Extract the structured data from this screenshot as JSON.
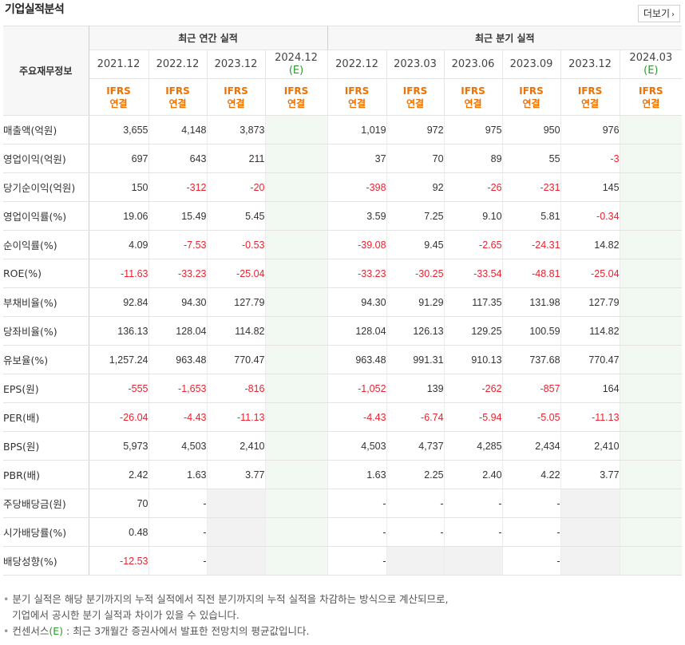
{
  "header": {
    "title": "기업실적분석",
    "more_label": "더보기",
    "more_icon": "chevron-right"
  },
  "table": {
    "corner_label": "주요재무정보",
    "annual_group": "최근 연간 실적",
    "quarter_group": "최근 분기 실적",
    "annual_periods": [
      "2021.12",
      "2022.12",
      "2023.12",
      "2024.12"
    ],
    "quarter_periods": [
      "2022.12",
      "2023.03",
      "2023.06",
      "2023.09",
      "2023.12",
      "2024.03"
    ],
    "estimate_mark": "(E)",
    "ifrs": "IFRS",
    "consolidated": "연결",
    "rows": [
      {
        "label": "매출액(억원)",
        "values": [
          "3,655",
          "4,148",
          "3,873",
          "",
          "1,019",
          "972",
          "975",
          "950",
          "976",
          ""
        ]
      },
      {
        "label": "영업이익(억원)",
        "values": [
          "697",
          "643",
          "211",
          "",
          "37",
          "70",
          "89",
          "55",
          "-3",
          ""
        ]
      },
      {
        "label": "당기순이익(억원)",
        "values": [
          "150",
          "-312",
          "-20",
          "",
          "-398",
          "92",
          "-26",
          "-231",
          "145",
          ""
        ]
      },
      {
        "label": "영업이익률(%)",
        "values": [
          "19.06",
          "15.49",
          "5.45",
          "",
          "3.59",
          "7.25",
          "9.10",
          "5.81",
          "-0.34",
          ""
        ]
      },
      {
        "label": "순이익률(%)",
        "values": [
          "4.09",
          "-7.53",
          "-0.53",
          "",
          "-39.08",
          "9.45",
          "-2.65",
          "-24.31",
          "14.82",
          ""
        ]
      },
      {
        "label": "ROE(%)",
        "values": [
          "-11.63",
          "-33.23",
          "-25.04",
          "",
          "-33.23",
          "-30.25",
          "-33.54",
          "-48.81",
          "-25.04",
          ""
        ]
      },
      {
        "label": "부채비율(%)",
        "values": [
          "92.84",
          "94.30",
          "127.79",
          "",
          "94.30",
          "91.29",
          "117.35",
          "131.98",
          "127.79",
          ""
        ]
      },
      {
        "label": "당좌비율(%)",
        "values": [
          "136.13",
          "128.04",
          "114.82",
          "",
          "128.04",
          "126.13",
          "129.25",
          "100.59",
          "114.82",
          ""
        ]
      },
      {
        "label": "유보율(%)",
        "values": [
          "1,257.24",
          "963.48",
          "770.47",
          "",
          "963.48",
          "991.31",
          "910.13",
          "737.68",
          "770.47",
          ""
        ]
      },
      {
        "label": "EPS(원)",
        "values": [
          "-555",
          "-1,653",
          "-816",
          "",
          "-1,052",
          "139",
          "-262",
          "-857",
          "164",
          ""
        ]
      },
      {
        "label": "PER(배)",
        "values": [
          "-26.04",
          "-4.43",
          "-11.13",
          "",
          "-4.43",
          "-6.74",
          "-5.94",
          "-5.05",
          "-11.13",
          ""
        ]
      },
      {
        "label": "BPS(원)",
        "values": [
          "5,973",
          "4,503",
          "2,410",
          "",
          "4,503",
          "4,737",
          "4,285",
          "2,434",
          "2,410",
          ""
        ]
      },
      {
        "label": "PBR(배)",
        "values": [
          "2.42",
          "1.63",
          "3.77",
          "",
          "1.63",
          "2.25",
          "2.40",
          "4.22",
          "3.77",
          ""
        ]
      },
      {
        "label": "주당배당금(원)",
        "values": [
          "70",
          "-",
          "",
          "",
          "-",
          "-",
          "-",
          "-",
          "",
          ""
        ]
      },
      {
        "label": "시가배당률(%)",
        "values": [
          "0.48",
          "-",
          "",
          "",
          "-",
          "-",
          "-",
          "-",
          "",
          ""
        ]
      },
      {
        "label": "배당성향(%)",
        "values": [
          "-12.53",
          "-",
          "",
          "",
          "-",
          "",
          "",
          "-",
          "",
          ""
        ]
      }
    ]
  },
  "notes": {
    "line1": "분기 실적은 해당 분기까지의 누적 실적에서 직전 분기까지의 누적 실적을 차감하는 방식으로 계산되므로,",
    "line2": "기업에서 공시한 분기 실적과 차이가 있을 수 있습니다.",
    "line3_prefix": "컨센서스",
    "line3_mark": "(E)",
    "line3_suffix": " : 최근 3개월간 증권사에서 발표한 전망치의 평균값입니다."
  },
  "colors": {
    "negative": "#e8232f",
    "ifrs": "#f07000",
    "estimate_bg": "#f2f9f2",
    "estimate_text": "#2c9a2c",
    "empty_cell": "#f2f2f2"
  }
}
